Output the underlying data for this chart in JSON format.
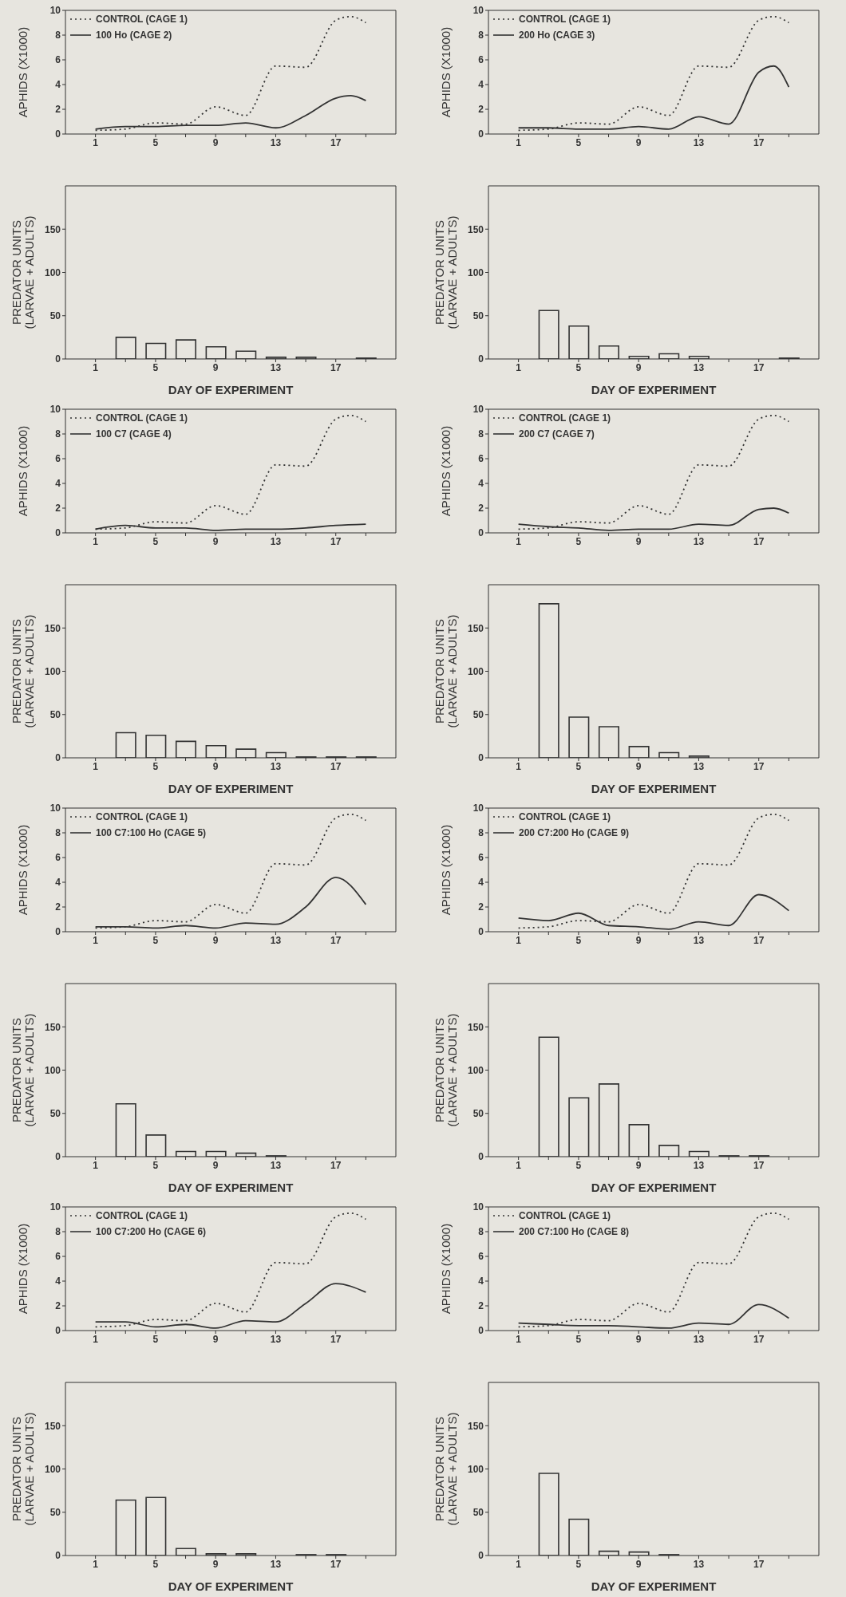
{
  "chart_data": [
    {
      "type": "line",
      "ylabel": "APHIDS (X1000)",
      "xlim": [
        -1,
        21
      ],
      "ylim": [
        0,
        10
      ],
      "yticks": [
        0,
        2,
        4,
        6,
        8,
        10
      ],
      "xticks": [
        1,
        {
          "value": 3,
          "label": null
        },
        5,
        {
          "value": 7,
          "label": null
        },
        9,
        {
          "value": 11,
          "label": null
        },
        13,
        {
          "value": 15,
          "label": null
        },
        17,
        {
          "value": 19,
          "label": null
        }
      ],
      "legend": "top left",
      "series": [
        {
          "name": "CONTROL (CAGE 1)",
          "color": "#333333",
          "line_style": "dotted",
          "x": [
            1,
            3,
            5,
            7,
            9,
            11,
            13,
            15,
            17,
            18,
            19
          ],
          "values": [
            0.3,
            0.4,
            0.9,
            0.8,
            2.2,
            1.5,
            5.5,
            5.4,
            9.2,
            9.5,
            9.0
          ]
        },
        {
          "name": "100 Ho (CAGE 2)",
          "color": "#333333",
          "line_style": "solid",
          "x": [
            1,
            3,
            5,
            7,
            9,
            11,
            13,
            15,
            17,
            18,
            19
          ],
          "values": [
            0.4,
            0.6,
            0.6,
            0.7,
            0.7,
            0.9,
            0.5,
            1.5,
            2.9,
            3.1,
            2.7
          ]
        }
      ]
    },
    {
      "type": "bar",
      "xlabel": "DAY OF EXPERIMENT",
      "ylabel": "PREDATOR UNITS (LARVAE + ADULTS)",
      "xlim": [
        -1,
        21
      ],
      "ylim": [
        0,
        200
      ],
      "yticks": [
        0,
        50,
        100,
        150
      ],
      "xticks": [
        1,
        {
          "value": 3,
          "label": null
        },
        5,
        {
          "value": 7,
          "label": null
        },
        9,
        {
          "value": 11,
          "label": null
        },
        13,
        {
          "value": 15,
          "label": null
        },
        17,
        {
          "value": 19,
          "label": null
        }
      ],
      "color": "#333333",
      "x": [
        3,
        5,
        7,
        9,
        11,
        13,
        15,
        17,
        19
      ],
      "values": [
        25,
        18,
        22,
        14,
        9,
        2,
        2,
        null,
        1
      ]
    },
    {
      "type": "line",
      "ylabel": "APHIDS (X1000)",
      "xlim": [
        -1,
        21
      ],
      "ylim": [
        0,
        10
      ],
      "yticks": [
        0,
        2,
        4,
        6,
        8,
        10
      ],
      "xticks": [
        1,
        {
          "value": 3,
          "label": null
        },
        5,
        {
          "value": 7,
          "label": null
        },
        9,
        {
          "value": 11,
          "label": null
        },
        13,
        {
          "value": 15,
          "label": null
        },
        17,
        {
          "value": 19,
          "label": null
        }
      ],
      "legend": "top left",
      "series": [
        {
          "name": "CONTROL (CAGE 1)",
          "color": "#333333",
          "line_style": "dotted",
          "x": [
            1,
            3,
            5,
            7,
            9,
            11,
            13,
            15,
            17,
            18,
            19
          ],
          "values": [
            0.3,
            0.4,
            0.9,
            0.8,
            2.2,
            1.5,
            5.5,
            5.4,
            9.2,
            9.5,
            9.0
          ]
        },
        {
          "name": "200 Ho (CAGE 3)",
          "color": "#333333",
          "line_style": "solid",
          "x": [
            1,
            3,
            5,
            7,
            9,
            11,
            13,
            15,
            17,
            18,
            19
          ],
          "values": [
            0.5,
            0.5,
            0.4,
            0.4,
            0.6,
            0.4,
            1.4,
            0.8,
            5.0,
            5.5,
            3.8
          ]
        }
      ]
    },
    {
      "type": "bar",
      "xlabel": "DAY OF EXPERIMENT",
      "ylabel": "PREDATOR UNITS (LARVAE + ADULTS)",
      "xlim": [
        -1,
        21
      ],
      "ylim": [
        0,
        200
      ],
      "yticks": [
        0,
        50,
        100,
        150
      ],
      "xticks": [
        1,
        {
          "value": 3,
          "label": null
        },
        5,
        {
          "value": 7,
          "label": null
        },
        9,
        {
          "value": 11,
          "label": null
        },
        13,
        {
          "value": 15,
          "label": null
        },
        17,
        {
          "value": 19,
          "label": null
        }
      ],
      "color": "#333333",
      "x": [
        3,
        5,
        7,
        9,
        11,
        13,
        15,
        17,
        19
      ],
      "values": [
        56,
        38,
        15,
        3,
        6,
        3,
        null,
        null,
        1
      ]
    },
    {
      "type": "line",
      "ylabel": "APHIDS (X1000)",
      "xlim": [
        -1,
        21
      ],
      "ylim": [
        0,
        10
      ],
      "yticks": [
        0,
        2,
        4,
        6,
        8,
        10
      ],
      "xticks": [
        1,
        {
          "value": 3,
          "label": null
        },
        5,
        {
          "value": 7,
          "label": null
        },
        9,
        {
          "value": 11,
          "label": null
        },
        13,
        {
          "value": 15,
          "label": null
        },
        17,
        {
          "value": 19,
          "label": null
        }
      ],
      "legend": "top left",
      "series": [
        {
          "name": "CONTROL (CAGE 1)",
          "color": "#333333",
          "line_style": "dotted",
          "x": [
            1,
            3,
            5,
            7,
            9,
            11,
            13,
            15,
            17,
            18,
            19
          ],
          "values": [
            0.3,
            0.4,
            0.9,
            0.8,
            2.2,
            1.5,
            5.5,
            5.4,
            9.2,
            9.5,
            9.0
          ]
        },
        {
          "name": "100 C7 (CAGE 4)",
          "color": "#333333",
          "line_style": "solid",
          "x": [
            1,
            3,
            5,
            7,
            9,
            11,
            13,
            15,
            17,
            19
          ],
          "values": [
            0.3,
            0.6,
            0.4,
            0.4,
            0.2,
            0.3,
            0.3,
            0.4,
            0.6,
            0.7
          ]
        }
      ]
    },
    {
      "type": "bar",
      "xlabel": "DAY OF EXPERIMENT",
      "ylabel": "PREDATOR UNITS (LARVAE + ADULTS)",
      "xlim": [
        -1,
        21
      ],
      "ylim": [
        0,
        200
      ],
      "yticks": [
        0,
        50,
        100,
        150
      ],
      "xticks": [
        1,
        {
          "value": 3,
          "label": null
        },
        5,
        {
          "value": 7,
          "label": null
        },
        9,
        {
          "value": 11,
          "label": null
        },
        13,
        {
          "value": 15,
          "label": null
        },
        17,
        {
          "value": 19,
          "label": null
        }
      ],
      "color": "#333333",
      "x": [
        3,
        5,
        7,
        9,
        11,
        13,
        15,
        17,
        19
      ],
      "values": [
        29,
        26,
        19,
        14,
        10,
        6,
        1,
        1,
        1
      ]
    },
    {
      "type": "line",
      "ylabel": "APHIDS (X1000)",
      "xlim": [
        -1,
        21
      ],
      "ylim": [
        0,
        10
      ],
      "yticks": [
        0,
        2,
        4,
        6,
        8,
        10
      ],
      "xticks": [
        1,
        {
          "value": 3,
          "label": null
        },
        5,
        {
          "value": 7,
          "label": null
        },
        9,
        {
          "value": 11,
          "label": null
        },
        13,
        {
          "value": 15,
          "label": null
        },
        17,
        {
          "value": 19,
          "label": null
        }
      ],
      "legend": "top left",
      "series": [
        {
          "name": "CONTROL (CAGE 1)",
          "color": "#333333",
          "line_style": "dotted",
          "x": [
            1,
            3,
            5,
            7,
            9,
            11,
            13,
            15,
            17,
            18,
            19
          ],
          "values": [
            0.3,
            0.4,
            0.9,
            0.8,
            2.2,
            1.5,
            5.5,
            5.4,
            9.2,
            9.5,
            9.0
          ]
        },
        {
          "name": "200 C7 (CAGE 7)",
          "color": "#333333",
          "line_style": "solid",
          "x": [
            1,
            3,
            5,
            7,
            9,
            11,
            13,
            15,
            17,
            18,
            19
          ],
          "values": [
            0.7,
            0.5,
            0.4,
            0.2,
            0.3,
            0.3,
            0.7,
            0.6,
            1.9,
            2.0,
            1.6
          ]
        }
      ]
    },
    {
      "type": "bar",
      "xlabel": "DAY OF EXPERIMENT",
      "ylabel": "PREDATOR UNITS (LARVAE + ADULTS)",
      "xlim": [
        -1,
        21
      ],
      "ylim": [
        0,
        200
      ],
      "yticks": [
        0,
        50,
        100,
        150
      ],
      "xticks": [
        1,
        {
          "value": 3,
          "label": null
        },
        5,
        {
          "value": 7,
          "label": null
        },
        9,
        {
          "value": 11,
          "label": null
        },
        13,
        {
          "value": 15,
          "label": null
        },
        17,
        {
          "value": 19,
          "label": null
        }
      ],
      "color": "#333333",
      "x": [
        3,
        5,
        7,
        9,
        11,
        13
      ],
      "values": [
        178,
        47,
        36,
        13,
        6,
        2
      ]
    },
    {
      "type": "line",
      "ylabel": "APHIDS (X1000)",
      "xlim": [
        -1,
        21
      ],
      "ylim": [
        0,
        10
      ],
      "yticks": [
        0,
        2,
        4,
        6,
        8,
        10
      ],
      "xticks": [
        1,
        {
          "value": 3,
          "label": null
        },
        5,
        {
          "value": 7,
          "label": null
        },
        9,
        {
          "value": 11,
          "label": null
        },
        13,
        {
          "value": 15,
          "label": null
        },
        17,
        {
          "value": 19,
          "label": null
        }
      ],
      "legend": "top left",
      "series": [
        {
          "name": "CONTROL (CAGE 1)",
          "color": "#333333",
          "line_style": "dotted",
          "x": [
            1,
            3,
            5,
            7,
            9,
            11,
            13,
            15,
            17,
            18,
            19
          ],
          "values": [
            0.3,
            0.4,
            0.9,
            0.8,
            2.2,
            1.5,
            5.5,
            5.4,
            9.2,
            9.5,
            9.0
          ]
        },
        {
          "name": "100 C7:100 Ho (CAGE 5)",
          "color": "#333333",
          "line_style": "solid",
          "x": [
            1,
            3,
            5,
            7,
            9,
            11,
            13,
            15,
            17,
            19
          ],
          "values": [
            0.4,
            0.4,
            0.3,
            0.5,
            0.3,
            0.7,
            0.6,
            2.0,
            4.4,
            2.2
          ]
        }
      ]
    },
    {
      "type": "bar",
      "xlabel": "DAY OF EXPERIMENT",
      "ylabel": "PREDATOR UNITS (LARVAE + ADULTS)",
      "xlim": [
        -1,
        21
      ],
      "ylim": [
        0,
        200
      ],
      "yticks": [
        0,
        50,
        100,
        150
      ],
      "xticks": [
        1,
        {
          "value": 3,
          "label": null
        },
        5,
        {
          "value": 7,
          "label": null
        },
        9,
        {
          "value": 11,
          "label": null
        },
        13,
        {
          "value": 15,
          "label": null
        },
        17,
        {
          "value": 19,
          "label": null
        }
      ],
      "color": "#333333",
      "x": [
        3,
        5,
        7,
        9,
        11,
        13
      ],
      "values": [
        61,
        25,
        6,
        6,
        4,
        1
      ]
    },
    {
      "type": "line",
      "ylabel": "APHIDS (X1000)",
      "xlim": [
        -1,
        21
      ],
      "ylim": [
        0,
        10
      ],
      "yticks": [
        0,
        2,
        4,
        6,
        8,
        10
      ],
      "xticks": [
        1,
        {
          "value": 3,
          "label": null
        },
        5,
        {
          "value": 7,
          "label": null
        },
        9,
        {
          "value": 11,
          "label": null
        },
        13,
        {
          "value": 15,
          "label": null
        },
        17,
        {
          "value": 19,
          "label": null
        }
      ],
      "legend": "top left",
      "series": [
        {
          "name": "CONTROL (CAGE 1)",
          "color": "#333333",
          "line_style": "dotted",
          "x": [
            1,
            3,
            5,
            7,
            9,
            11,
            13,
            15,
            17,
            18,
            19
          ],
          "values": [
            0.3,
            0.4,
            0.9,
            0.8,
            2.2,
            1.5,
            5.5,
            5.4,
            9.2,
            9.5,
            9.0
          ]
        },
        {
          "name": "200 C7:200 Ho (CAGE 9)",
          "color": "#333333",
          "line_style": "solid",
          "x": [
            1,
            3,
            5,
            7,
            9,
            11,
            13,
            15,
            17,
            19
          ],
          "values": [
            1.1,
            0.9,
            1.5,
            0.5,
            0.4,
            0.2,
            0.8,
            0.5,
            3.0,
            1.7
          ]
        }
      ]
    },
    {
      "type": "bar",
      "xlabel": "DAY OF EXPERIMENT",
      "ylabel": "PREDATOR UNITS (LARVAE + ADULTS)",
      "xlim": [
        -1,
        21
      ],
      "ylim": [
        0,
        200
      ],
      "yticks": [
        0,
        50,
        100,
        150
      ],
      "xticks": [
        1,
        {
          "value": 3,
          "label": null
        },
        5,
        {
          "value": 7,
          "label": null
        },
        9,
        {
          "value": 11,
          "label": null
        },
        13,
        {
          "value": 15,
          "label": null
        },
        17,
        {
          "value": 19,
          "label": null
        }
      ],
      "color": "#333333",
      "x": [
        3,
        5,
        7,
        9,
        11,
        13,
        15,
        17
      ],
      "values": [
        138,
        68,
        84,
        37,
        13,
        6,
        1,
        1
      ]
    },
    {
      "type": "line",
      "ylabel": "APHIDS (X1000)",
      "xlim": [
        -1,
        21
      ],
      "ylim": [
        0,
        10
      ],
      "yticks": [
        0,
        2,
        4,
        6,
        8,
        10
      ],
      "xticks": [
        1,
        {
          "value": 3,
          "label": null
        },
        5,
        {
          "value": 7,
          "label": null
        },
        9,
        {
          "value": 11,
          "label": null
        },
        13,
        {
          "value": 15,
          "label": null
        },
        17,
        {
          "value": 19,
          "label": null
        }
      ],
      "legend": "top left",
      "series": [
        {
          "name": "CONTROL (CAGE 1)",
          "color": "#333333",
          "line_style": "dotted",
          "x": [
            1,
            3,
            5,
            7,
            9,
            11,
            13,
            15,
            17,
            18,
            19
          ],
          "values": [
            0.3,
            0.4,
            0.9,
            0.8,
            2.2,
            1.5,
            5.5,
            5.4,
            9.2,
            9.5,
            9.0
          ]
        },
        {
          "name": "100 C7:200 Ho (CAGE 6)",
          "color": "#333333",
          "line_style": "solid",
          "x": [
            1,
            3,
            5,
            7,
            9,
            11,
            13,
            15,
            17,
            19
          ],
          "values": [
            0.7,
            0.7,
            0.3,
            0.5,
            0.2,
            0.8,
            0.7,
            2.2,
            3.8,
            3.1
          ]
        }
      ]
    },
    {
      "type": "bar",
      "xlabel": "DAY OF EXPERIMENT",
      "ylabel": "PREDATOR UNITS (LARVAE + ADULTS)",
      "xlim": [
        -1,
        21
      ],
      "ylim": [
        0,
        200
      ],
      "yticks": [
        0,
        50,
        100,
        150
      ],
      "xticks": [
        1,
        {
          "value": 3,
          "label": null
        },
        5,
        {
          "value": 7,
          "label": null
        },
        9,
        {
          "value": 11,
          "label": null
        },
        13,
        {
          "value": 15,
          "label": null
        },
        17,
        {
          "value": 19,
          "label": null
        }
      ],
      "color": "#333333",
      "x": [
        3,
        5,
        7,
        9,
        11,
        13,
        15,
        17
      ],
      "values": [
        64,
        67,
        8,
        2,
        2,
        null,
        1,
        1
      ]
    },
    {
      "type": "line",
      "ylabel": "APHIDS (X1000)",
      "xlim": [
        -1,
        21
      ],
      "ylim": [
        0,
        10
      ],
      "yticks": [
        0,
        2,
        4,
        6,
        8,
        10
      ],
      "xticks": [
        1,
        {
          "value": 3,
          "label": null
        },
        5,
        {
          "value": 7,
          "label": null
        },
        9,
        {
          "value": 11,
          "label": null
        },
        13,
        {
          "value": 15,
          "label": null
        },
        17,
        {
          "value": 19,
          "label": null
        }
      ],
      "legend": "top left",
      "series": [
        {
          "name": "CONTROL (CAGE 1)",
          "color": "#333333",
          "line_style": "dotted",
          "x": [
            1,
            3,
            5,
            7,
            9,
            11,
            13,
            15,
            17,
            18,
            19
          ],
          "values": [
            0.3,
            0.4,
            0.9,
            0.8,
            2.2,
            1.5,
            5.5,
            5.4,
            9.2,
            9.5,
            9.0
          ]
        },
        {
          "name": "200 C7:100 Ho (CAGE 8)",
          "color": "#333333",
          "line_style": "solid",
          "x": [
            1,
            3,
            5,
            7,
            9,
            11,
            13,
            15,
            17,
            19
          ],
          "values": [
            0.6,
            0.5,
            0.4,
            0.4,
            0.3,
            0.2,
            0.6,
            0.5,
            2.1,
            1.0
          ]
        }
      ]
    },
    {
      "type": "bar",
      "xlabel": "DAY OF EXPERIMENT",
      "ylabel": "PREDATOR UNITS (LARVAE + ADULTS)",
      "xlim": [
        -1,
        21
      ],
      "ylim": [
        0,
        200
      ],
      "yticks": [
        0,
        50,
        100,
        150
      ],
      "xticks": [
        1,
        {
          "value": 3,
          "label": null
        },
        5,
        {
          "value": 7,
          "label": null
        },
        9,
        {
          "value": 11,
          "label": null
        },
        13,
        {
          "value": 15,
          "label": null
        },
        17,
        {
          "value": 19,
          "label": null
        }
      ],
      "color": "#333333",
      "x": [
        3,
        5,
        7,
        9,
        11
      ],
      "values": [
        95,
        42,
        5,
        4,
        1
      ]
    }
  ]
}
